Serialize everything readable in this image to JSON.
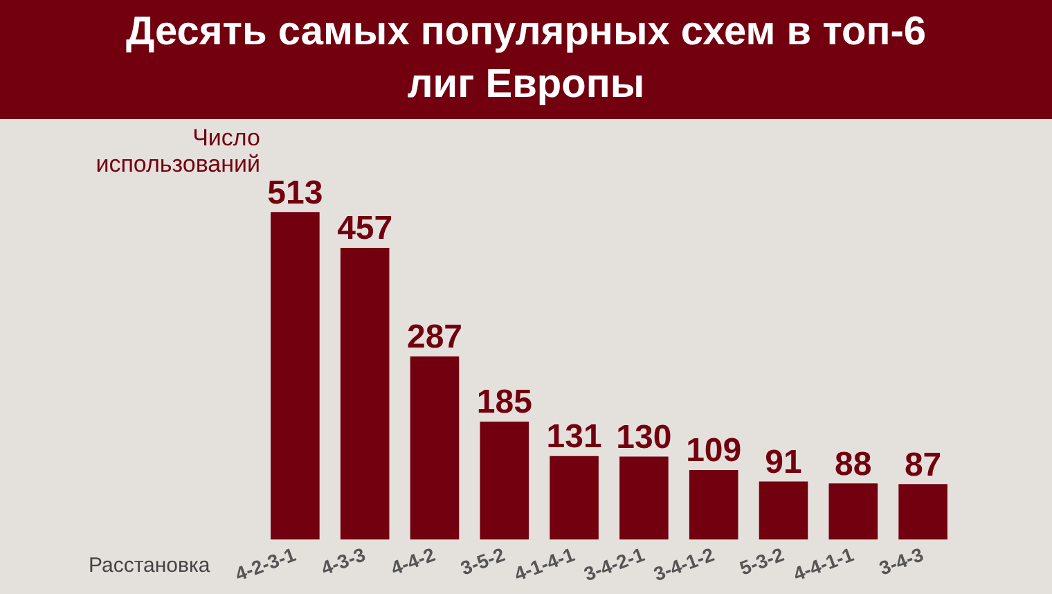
{
  "chart_data": {
    "type": "bar",
    "title": "Десять самых популярных схем в топ-6 лиг Европы",
    "ylabel": "Число использований",
    "xlabel": "Расстановка",
    "categories": [
      "4-2-3-1",
      "4-3-3",
      "4-4-2",
      "3-5-2",
      "4-1-4-1",
      "3-4-2-1",
      "3-4-1-2",
      "5-3-2",
      "4-4-1-1",
      "3-4-3"
    ],
    "values": [
      513,
      457,
      287,
      185,
      131,
      130,
      109,
      91,
      88,
      87
    ],
    "color": "#72000f",
    "data_labels": true,
    "grid": false,
    "legend": false
  }
}
